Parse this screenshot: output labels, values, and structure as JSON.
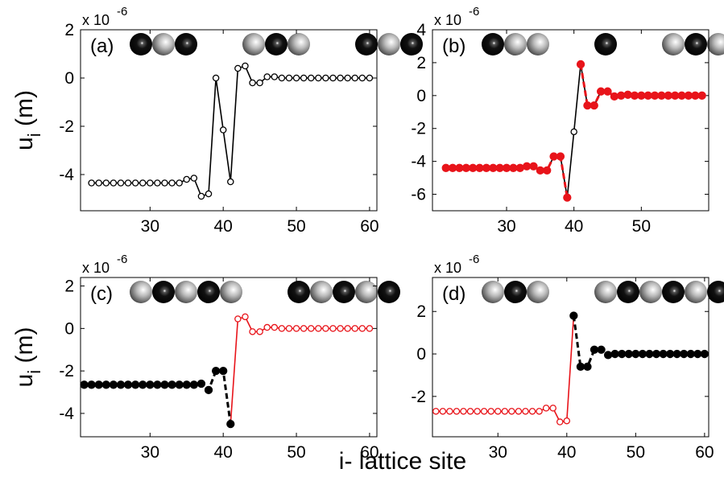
{
  "figure": {
    "xlabel": "i- lattice site"
  },
  "chart_data": [
    {
      "type": "line",
      "panel_label": "(a)",
      "multiplier": "x 10",
      "exponent": "-6",
      "ylabel": {
        "symbol": "u",
        "subscript": "i",
        "unit": " (m)"
      },
      "xlim": [
        20.5,
        61
      ],
      "ylim": [
        -5.5,
        2
      ],
      "xticks": [
        30,
        40,
        50,
        60
      ],
      "yticks": [
        -4,
        -2,
        0,
        2
      ],
      "x": [
        22,
        23,
        24,
        25,
        26,
        27,
        28,
        29,
        30,
        31,
        32,
        33,
        34,
        35,
        36,
        37,
        38,
        39,
        40,
        41,
        42,
        43,
        44,
        45,
        46,
        47,
        48,
        49,
        50,
        51,
        52,
        53,
        54,
        55,
        56,
        57,
        58,
        59,
        60
      ],
      "series": [
        {
          "color": "#000000",
          "marker": "open",
          "linestyle": "solid",
          "values": [
            -4.35,
            -4.35,
            -4.35,
            -4.35,
            -4.35,
            -4.35,
            -4.35,
            -4.35,
            -4.35,
            -4.35,
            -4.35,
            -4.35,
            -4.35,
            -4.2,
            -4.15,
            -4.9,
            -4.8,
            0,
            -2.15,
            -4.3,
            0.4,
            0.5,
            -0.2,
            -0.2,
            0.05,
            0.05,
            0,
            0,
            0,
            0,
            0,
            0,
            0,
            0,
            0,
            0,
            0,
            0,
            0
          ]
        }
      ]
    },
    {
      "type": "line",
      "panel_label": "(b)",
      "multiplier": "x 10",
      "exponent": "-6",
      "xlim": [
        19,
        60
      ],
      "ylim": [
        -7,
        4
      ],
      "xticks": [
        30,
        40,
        50
      ],
      "yticks": [
        -6,
        -4,
        -2,
        0,
        2,
        4
      ],
      "x": [
        21,
        22,
        23,
        24,
        25,
        26,
        27,
        28,
        29,
        30,
        31,
        32,
        33,
        34,
        35,
        36,
        37,
        38,
        39,
        40,
        41,
        42,
        43,
        44,
        45,
        46,
        47,
        48,
        49,
        50,
        51,
        52,
        53,
        54,
        55,
        56,
        57,
        58,
        59
      ],
      "series": [
        {
          "color": "#000000",
          "marker": "open",
          "linestyle": "solid",
          "values": [
            -4.4,
            -4.4,
            -4.4,
            -4.4,
            -4.4,
            -4.4,
            -4.4,
            -4.4,
            -4.4,
            -4.4,
            -4.4,
            -4.4,
            -4.3,
            -4.3,
            -4.55,
            -4.55,
            -3.7,
            -3.7,
            -6.2,
            -2.2,
            1.9,
            -0.6,
            -0.6,
            0.25,
            0.25,
            -0.05,
            0,
            0.05,
            0,
            0,
            0,
            0,
            0,
            0,
            0,
            0,
            0,
            0,
            0
          ]
        },
        {
          "color": "#e8141a",
          "marker": "filled",
          "linestyle": "dashed",
          "values": [
            -4.4,
            -4.4,
            -4.4,
            -4.4,
            -4.4,
            -4.4,
            -4.4,
            -4.4,
            -4.4,
            -4.4,
            -4.4,
            -4.4,
            -4.3,
            -4.3,
            -4.55,
            -4.55,
            -3.7,
            -3.7,
            -6.2,
            null,
            1.9,
            -0.6,
            -0.6,
            0.25,
            0.25,
            -0.05,
            0,
            0.05,
            0,
            0,
            0,
            0,
            0,
            0,
            0,
            0,
            0,
            0,
            0
          ]
        }
      ]
    },
    {
      "type": "line",
      "panel_label": "(c)",
      "multiplier": "x 10",
      "exponent": "-6",
      "ylabel": {
        "symbol": "u",
        "subscript": "i",
        "unit": " (m)"
      },
      "xlim": [
        20.5,
        61
      ],
      "ylim": [
        -5.1,
        2.4
      ],
      "xticks": [
        30,
        40,
        50,
        60
      ],
      "yticks": [
        -4,
        -2,
        0,
        2
      ],
      "x": [
        21,
        22,
        23,
        24,
        25,
        26,
        27,
        28,
        29,
        30,
        31,
        32,
        33,
        34,
        35,
        36,
        37,
        38,
        39,
        40,
        41,
        42,
        43,
        44,
        45,
        46,
        47,
        48,
        49,
        50,
        51,
        52,
        53,
        54,
        55,
        56,
        57,
        58,
        59,
        60
      ],
      "series": [
        {
          "color": "#e8141a",
          "marker": "open",
          "linestyle": "solid",
          "values": [
            null,
            null,
            null,
            null,
            null,
            null,
            null,
            null,
            null,
            null,
            null,
            null,
            null,
            null,
            null,
            null,
            null,
            null,
            null,
            null,
            -4.5,
            0.45,
            0.55,
            -0.15,
            -0.15,
            0.05,
            0.05,
            0,
            0,
            0,
            0,
            0,
            0,
            0,
            0,
            0,
            0,
            0,
            0,
            0
          ]
        },
        {
          "color": "#000000",
          "marker": "filled",
          "linestyle": "dashed",
          "values": [
            -2.65,
            -2.65,
            -2.65,
            -2.65,
            -2.65,
            -2.65,
            -2.65,
            -2.65,
            -2.65,
            -2.65,
            -2.65,
            -2.65,
            -2.65,
            -2.65,
            -2.65,
            -2.65,
            -2.6,
            -2.9,
            -2.0,
            -2.0,
            -4.5,
            null,
            null,
            null,
            null,
            null,
            null,
            null,
            null,
            null,
            null,
            null,
            null,
            null,
            null,
            null,
            null,
            null,
            null,
            null
          ]
        }
      ]
    },
    {
      "type": "line",
      "panel_label": "(d)",
      "multiplier": "x 10",
      "exponent": "-6",
      "xlim": [
        20.5,
        60.6
      ],
      "ylim": [
        -3.9,
        3.6
      ],
      "xticks": [
        30,
        40,
        50,
        60
      ],
      "yticks": [
        -2,
        0,
        2
      ],
      "x": [
        21,
        22,
        23,
        24,
        25,
        26,
        27,
        28,
        29,
        30,
        31,
        32,
        33,
        34,
        35,
        36,
        37,
        38,
        39,
        40,
        41,
        42,
        43,
        44,
        45,
        46,
        47,
        48,
        49,
        50,
        51,
        52,
        53,
        54,
        55,
        56,
        57,
        58,
        59,
        60
      ],
      "series": [
        {
          "color": "#e8141a",
          "marker": "open",
          "linestyle": "solid",
          "values": [
            -2.7,
            -2.7,
            -2.7,
            -2.7,
            -2.7,
            -2.7,
            -2.7,
            -2.7,
            -2.7,
            -2.7,
            -2.7,
            -2.7,
            -2.7,
            -2.7,
            -2.7,
            -2.7,
            -2.55,
            -2.55,
            -3.2,
            -3.15,
            1.8,
            null,
            null,
            null,
            null,
            null,
            null,
            null,
            null,
            null,
            null,
            null,
            null,
            null,
            null,
            null,
            null,
            null,
            null,
            null
          ]
        },
        {
          "color": "#000000",
          "marker": "filled",
          "linestyle": "dashed",
          "values": [
            null,
            null,
            null,
            null,
            null,
            null,
            null,
            null,
            null,
            null,
            null,
            null,
            null,
            null,
            null,
            null,
            null,
            null,
            null,
            null,
            1.8,
            -0.6,
            -0.6,
            0.2,
            0.2,
            -0.05,
            0,
            0,
            0,
            0,
            0,
            0,
            0,
            0,
            0,
            0,
            0,
            0,
            0,
            0
          ]
        }
      ]
    }
  ]
}
